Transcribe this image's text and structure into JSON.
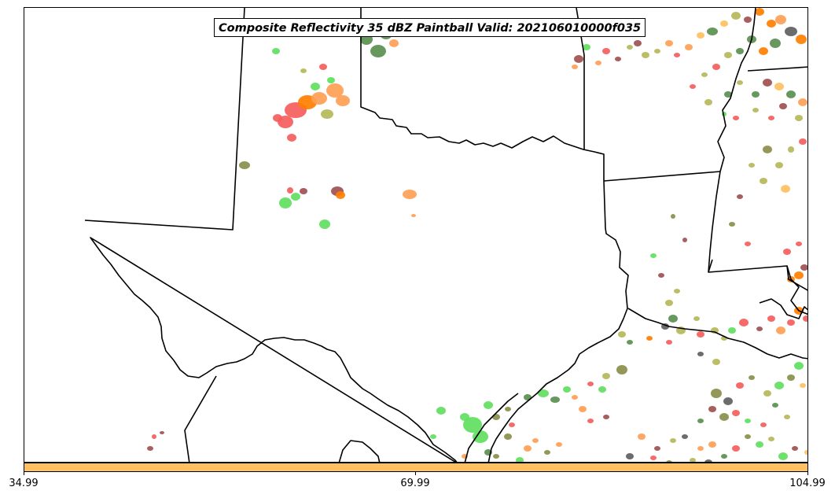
{
  "title": "Composite Reflectivity 35 dBZ Paintball Valid: 202106010000f035",
  "colorbar": {
    "color": "#ffc060",
    "ticks": [
      {
        "value": 34.99,
        "label": "34.99"
      },
      {
        "value": 69.99,
        "label": "69.99"
      },
      {
        "value": 104.99,
        "label": "104.99"
      }
    ],
    "range": [
      34.99,
      104.99
    ]
  },
  "member_colors": [
    "#5fdf5f",
    "#f55d5d",
    "#ff9f55",
    "#5a8f4f",
    "#9f5050",
    "#b5b85a",
    "#8a8f4a",
    "#ff7f00",
    "#5f5f5f",
    "#ffc060"
  ]
}
